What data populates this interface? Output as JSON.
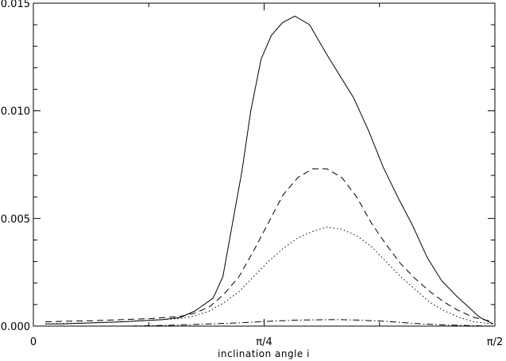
{
  "chart_data": {
    "type": "line",
    "title": "",
    "xlabel": "inclination angle i",
    "ylabel": "",
    "xlim": [
      0,
      1.5708
    ],
    "ylim": [
      0,
      0.015
    ],
    "grid": false,
    "legend": "none",
    "x_ticks": [
      {
        "value": 0,
        "label": "0"
      },
      {
        "value": 0.7854,
        "label": "π/4"
      },
      {
        "value": 1.5708,
        "label": "π/2"
      }
    ],
    "y_ticks": [
      {
        "value": 0,
        "label": "0.000"
      },
      {
        "value": 0.005,
        "label": "0.005"
      },
      {
        "value": 0.01,
        "label": "0.010"
      },
      {
        "value": 0.015,
        "label": "0.015"
      }
    ],
    "series": [
      {
        "style": "solid",
        "x": [
          0.0408,
          0.1,
          0.2,
          0.3,
          0.44,
          0.5,
          0.55,
          0.612,
          0.645,
          0.678,
          0.71,
          0.74,
          0.775,
          0.81,
          0.848,
          0.89,
          0.94,
          0.995,
          1.04,
          1.09,
          1.14,
          1.19,
          1.24,
          1.29,
          1.34,
          1.39,
          1.44,
          1.48,
          1.52,
          1.565
        ],
        "y": [
          0.0001,
          0.0001,
          0.00015,
          0.0002,
          0.0003,
          0.0004,
          0.0007,
          0.0013,
          0.0023,
          0.0048,
          0.0072,
          0.01,
          0.0124,
          0.0135,
          0.0141,
          0.0144,
          0.014,
          0.0127,
          0.0117,
          0.0106,
          0.0091,
          0.0074,
          0.006,
          0.0047,
          0.0032,
          0.0021,
          0.0014,
          0.0009,
          0.0004,
          0.0001
        ]
      },
      {
        "style": "dashed",
        "x": [
          0.0408,
          0.1,
          0.2,
          0.3,
          0.4,
          0.5,
          0.55,
          0.6,
          0.65,
          0.7,
          0.75,
          0.8,
          0.85,
          0.9,
          0.95,
          1.0,
          1.05,
          1.1,
          1.15,
          1.2,
          1.25,
          1.3,
          1.35,
          1.4,
          1.45,
          1.5,
          1.565
        ],
        "y": [
          0.0002,
          0.00022,
          0.00025,
          0.0003,
          0.00035,
          0.00045,
          0.0006,
          0.0009,
          0.0015,
          0.0023,
          0.0035,
          0.0048,
          0.0061,
          0.0069,
          0.0073,
          0.0073,
          0.0069,
          0.006,
          0.0048,
          0.0038,
          0.0029,
          0.0022,
          0.0016,
          0.0011,
          0.0007,
          0.0004,
          0.0002
        ]
      },
      {
        "style": "dotted",
        "x": [
          0.0408,
          0.1,
          0.2,
          0.3,
          0.4,
          0.5,
          0.55,
          0.6,
          0.65,
          0.7,
          0.75,
          0.8,
          0.85,
          0.9,
          0.95,
          1.0,
          1.05,
          1.1,
          1.15,
          1.2,
          1.25,
          1.3,
          1.35,
          1.4,
          1.45,
          1.5,
          1.565
        ],
        "y": [
          0.0001,
          0.00012,
          0.00015,
          0.0002,
          0.00028,
          0.00035,
          0.00048,
          0.0007,
          0.0011,
          0.0016,
          0.0023,
          0.003,
          0.0036,
          0.0041,
          0.0044,
          0.0046,
          0.0045,
          0.0042,
          0.0037,
          0.003,
          0.0023,
          0.0017,
          0.0011,
          0.0007,
          0.0004,
          0.0002,
          0.0001
        ]
      },
      {
        "style": "dashdot",
        "x": [
          0.0408,
          0.1,
          0.2,
          0.3,
          0.4,
          0.5,
          0.6,
          0.7,
          0.8,
          0.9,
          1.0,
          1.05,
          1.1,
          1.2,
          1.3,
          1.4,
          1.5,
          1.565
        ],
        "y": [
          0.0,
          0.0,
          0.0,
          0.0,
          2e-05,
          5e-05,
          0.0001,
          0.00015,
          0.00022,
          0.00028,
          0.0003,
          0.0003,
          0.00028,
          0.00022,
          0.00012,
          5e-05,
          2e-05,
          0.0
        ]
      }
    ]
  }
}
